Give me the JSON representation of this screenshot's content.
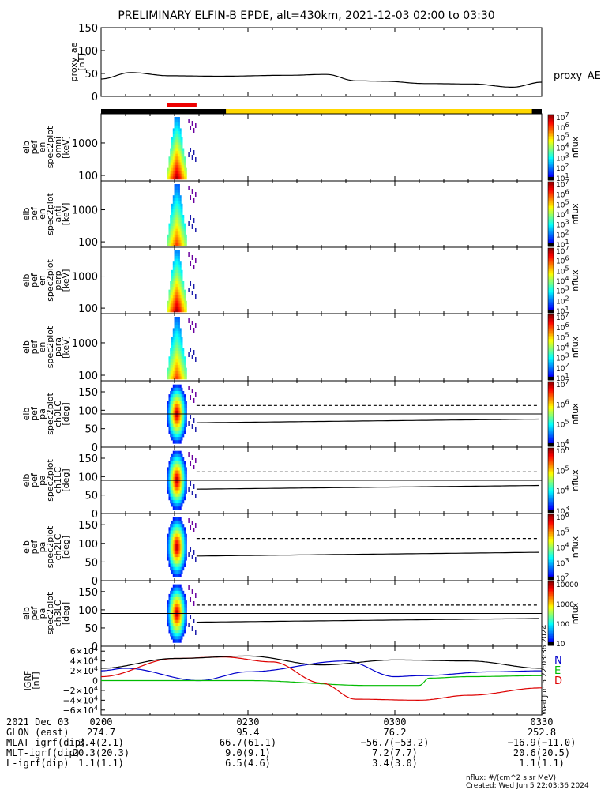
{
  "title": "PRELIMINARY ELFIN-B EPDE, alt=430km, 2021-12-03 02:00 to 03:30",
  "colors": {
    "science_bar": "#ffd700",
    "science_zone": "#ee0000",
    "bx": "#0000cc",
    "by": "#00bb00",
    "bz": "#dd0000",
    "bmag": "#000000"
  },
  "chart_data": [
    {
      "type": "line",
      "ylabel": [
        "proxy_ae",
        "[nT]"
      ],
      "legend": "proxy_AE",
      "ylim": [
        0,
        150
      ],
      "yticks": [
        "0",
        "50",
        "100",
        "150"
      ],
      "series": [
        {
          "name": "proxy_AE",
          "x_minutes": [
            0,
            6,
            14,
            24,
            38,
            46,
            52,
            58,
            66,
            76,
            84,
            90
          ],
          "values": [
            38,
            52,
            45,
            44,
            46,
            48,
            34,
            33,
            28,
            27,
            20,
            31
          ]
        }
      ]
    },
    {
      "type": "heatmap",
      "panels": [
        {
          "ylabel": [
            "elb",
            "pef",
            "en",
            "spec2plot",
            "omni",
            "[keV]"
          ],
          "yticks": [
            "100",
            "1000"
          ],
          "zlabel": "nflux",
          "cb_ticks": [
            "10^7",
            "10^6",
            "10^5",
            "10^4",
            "10^3",
            "10^2",
            "10^1"
          ]
        },
        {
          "ylabel": [
            "elb",
            "pef",
            "en",
            "spec2plot",
            "anti",
            "[keV]"
          ],
          "yticks": [
            "100",
            "1000"
          ],
          "zlabel": "nflux",
          "cb_ticks": [
            "10^7",
            "10^6",
            "10^5",
            "10^4",
            "10^3",
            "10^2",
            "10^1"
          ]
        },
        {
          "ylabel": [
            "elb",
            "pef",
            "en",
            "spec2plot",
            "perp",
            "[keV]"
          ],
          "yticks": [
            "100",
            "1000"
          ],
          "zlabel": "nflux",
          "cb_ticks": [
            "10^7",
            "10^6",
            "10^5",
            "10^4",
            "10^3",
            "10^2",
            "10^1"
          ]
        },
        {
          "ylabel": [
            "elb",
            "pef",
            "en",
            "spec2plot",
            "para",
            "[keV]"
          ],
          "yticks": [
            "100",
            "1000"
          ],
          "zlabel": "nflux",
          "cb_ticks": [
            "10^7",
            "10^6",
            "10^5",
            "10^4",
            "10^3",
            "10^2",
            "10^1"
          ]
        },
        {
          "ylabel": [
            "elb",
            "pef",
            "pa",
            "spec2plot",
            "ch0LC",
            "[deg]"
          ],
          "yticks": [
            "0",
            "50",
            "100",
            "150"
          ],
          "zlabel": "nflux",
          "cb_ticks": [
            "10^7",
            "10^6",
            "10^5",
            "10^4"
          ]
        },
        {
          "ylabel": [
            "elb",
            "pef",
            "pa",
            "spec2plot",
            "ch1LC",
            "[deg]"
          ],
          "yticks": [
            "0",
            "50",
            "100",
            "150"
          ],
          "zlabel": "nflux",
          "cb_ticks": [
            "10^6",
            "10^5",
            "10^4",
            "10^3"
          ]
        },
        {
          "ylabel": [
            "elb",
            "pef",
            "pa",
            "spec2plot",
            "ch2LC",
            "[deg]"
          ],
          "yticks": [
            "0",
            "50",
            "100",
            "150"
          ],
          "zlabel": "nflux",
          "cb_ticks": [
            "10^6",
            "10^5",
            "10^4",
            "10^3",
            "10^2"
          ]
        },
        {
          "ylabel": [
            "elb",
            "pef",
            "pa",
            "spec2plot",
            "ch3LC",
            "[deg]"
          ],
          "yticks": [
            "0",
            "50",
            "100",
            "150"
          ],
          "zlabel": "nflux",
          "cb_ticks": [
            "10000",
            "1000",
            "100",
            "10"
          ]
        }
      ]
    },
    {
      "type": "line",
      "ylabel": [
        "IGRF",
        "[nT]"
      ],
      "ylim": [
        -70000,
        70000
      ],
      "yticks": [
        "6×10^4",
        "4×10^4",
        "2×10^4",
        "0",
        "−2×10^4",
        "−4×10^4",
        "−6×10^4"
      ],
      "legend": [
        "N",
        "E",
        "D"
      ],
      "series": [
        {
          "name": "N",
          "x_minutes": [
            0,
            5,
            20,
            30,
            50,
            60,
            65,
            80,
            90
          ],
          "values": [
            20000,
            25000,
            0,
            18000,
            40000,
            8000,
            10000,
            18000,
            20000
          ]
        },
        {
          "name": "E",
          "x_minutes": [
            0,
            30,
            55,
            65,
            67,
            75,
            90
          ],
          "values": [
            0,
            0,
            -10000,
            -10000,
            5000,
            8000,
            10000
          ]
        },
        {
          "name": "D",
          "x_minutes": [
            0,
            15,
            25,
            35,
            45,
            52,
            65,
            75,
            90
          ],
          "values": [
            8000,
            45000,
            48000,
            38000,
            -5000,
            -38000,
            -40000,
            -30000,
            -15000
          ]
        },
        {
          "x_minutes": [
            0,
            15,
            30,
            45,
            60,
            75,
            90
          ],
          "values": [
            25000,
            45000,
            50000,
            32000,
            42000,
            40000,
            25000
          ]
        }
      ]
    }
  ],
  "xaxis": {
    "ticks": [
      "0200",
      "0230",
      "0300",
      "0330"
    ],
    "date": "2021 Dec 03",
    "rows": [
      {
        "label": "GLON (east)",
        "values": [
          "274.7",
          "95.4",
          "76.2",
          "252.8"
        ]
      },
      {
        "label": "MLAT-igrf(dip)",
        "values": [
          "3.4(2.1)",
          "66.7(61.1)",
          "−56.7(−53.2)",
          "−16.9(−11.0)"
        ]
      },
      {
        "label": "MLT-igrf(dip)",
        "values": [
          "20.3(20.3)",
          "9.0(9.1)",
          "7.2(7.7)",
          "20.6(20.5)"
        ]
      },
      {
        "label": "L-igrf(dip)",
        "values": [
          "1.1(1.1)",
          "6.5(4.6)",
          "3.4(3.0)",
          "1.1(1.1)"
        ]
      }
    ]
  },
  "footer": {
    "units": "nflux: #/(cm^2 s sr MeV)",
    "created": "Created: Wed Jun  5 22:03:36 2024",
    "side_stamp": "Wed Jun  5 22:03:36 2024"
  }
}
